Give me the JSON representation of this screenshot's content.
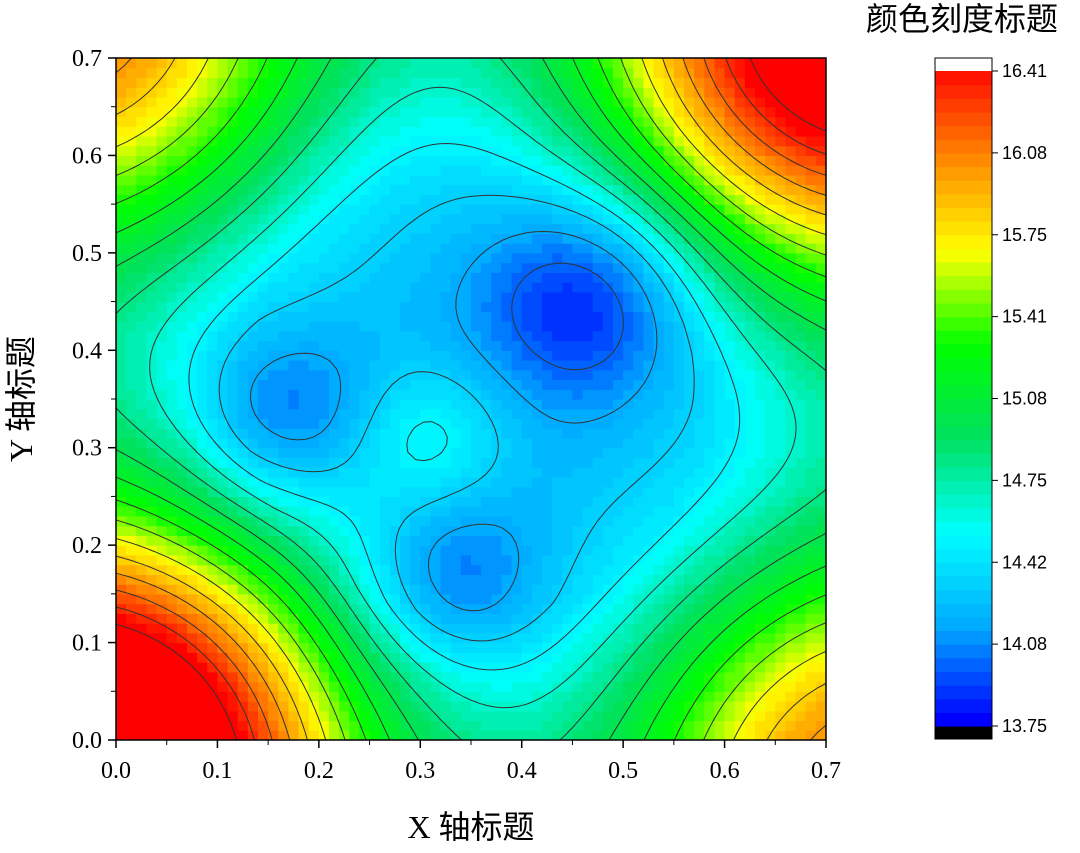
{
  "chart_data": {
    "type": "heatmap",
    "subtype": "filled-contour",
    "xlabel": "X 轴标题",
    "ylabel": "Y 轴标题",
    "colorbar_title": "颜色刻度标题",
    "xlim": [
      0,
      0.7
    ],
    "ylim": [
      0,
      0.7
    ],
    "x_ticks": [
      "0.0",
      "0.1",
      "0.2",
      "0.3",
      "0.4",
      "0.5",
      "0.6",
      "0.7"
    ],
    "y_ticks": [
      "0.0",
      "0.1",
      "0.2",
      "0.3",
      "0.4",
      "0.5",
      "0.6",
      "0.7"
    ],
    "colorbar": {
      "min": 13.75,
      "max": 16.41,
      "tick_labels": [
        "13.75",
        "14.08",
        "14.42",
        "14.75",
        "15.08",
        "15.41",
        "15.75",
        "16.08",
        "16.41"
      ],
      "colors": [
        "#0000ff",
        "#00aaff",
        "#00ffff",
        "#00e060",
        "#00ff00",
        "#ffff00",
        "#ff8800",
        "#ff0000"
      ],
      "under_color": "#000000",
      "over_color": "#ffffff"
    },
    "field": {
      "description": "z(x,y) surface; minima (blue) near these centers, maxima (red) at corners (0,0) and (0.7,0.7)",
      "minima": [
        {
          "x": 0.47,
          "y": 0.46,
          "z": 13.95
        },
        {
          "x": 0.165,
          "y": 0.33,
          "z": 14.05
        },
        {
          "x": 0.33,
          "y": 0.165,
          "z": 14.05
        }
      ],
      "local_max_inside": {
        "x": 0.31,
        "y": 0.31,
        "z": 14.38
      },
      "corner_max": [
        {
          "x": 0.0,
          "y": 0.0,
          "z": 16.38
        },
        {
          "x": 0.7,
          "y": 0.7,
          "z": 16.0
        }
      ]
    }
  }
}
